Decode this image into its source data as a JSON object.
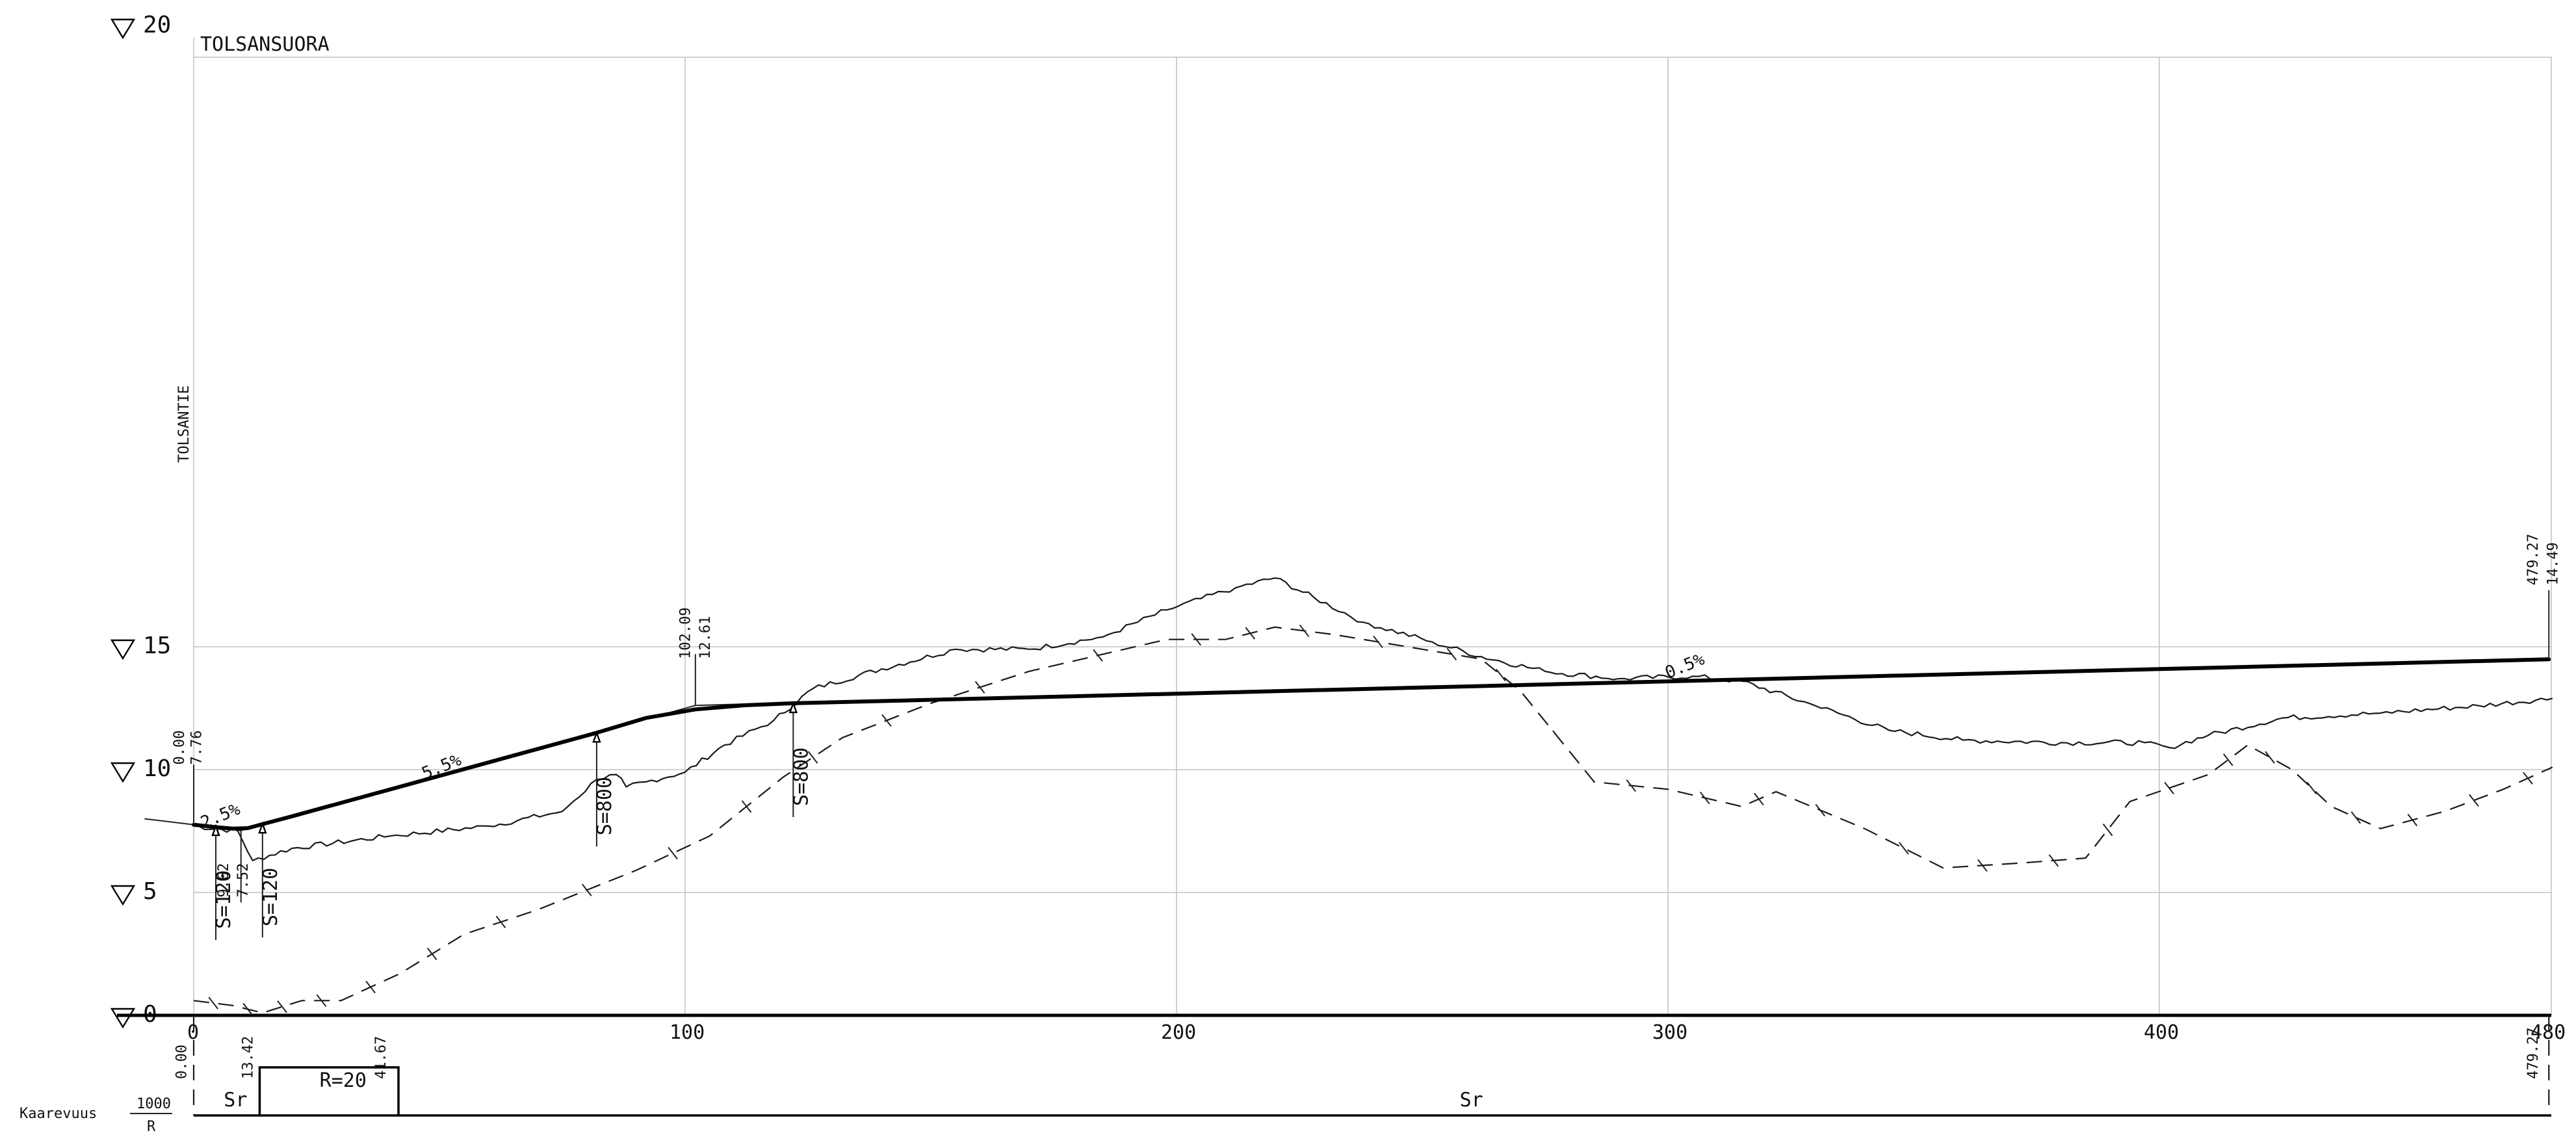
{
  "profile": {
    "road_name": "TOLSANSUORA",
    "crossing_road": "TOLSANTIE",
    "x_ticks": [
      0,
      100,
      200,
      300,
      400,
      480
    ],
    "elev_ticks": [
      0,
      5,
      10,
      15,
      20
    ],
    "grades": [
      {
        "text": "2.5%",
        "x": 2,
        "y": 7.6
      },
      {
        "text": "5.5%",
        "x": 47,
        "y": 9.6
      },
      {
        "text": "0.5%",
        "x": 300,
        "y": 13.7
      }
    ],
    "vertical_curves": [
      {
        "text": "S=120",
        "x": 4.5,
        "y": 7.7
      },
      {
        "text": "S=120",
        "x": 14,
        "y": 7.8
      },
      {
        "text": "S=800",
        "x": 82,
        "y": 11.5
      },
      {
        "text": "S=800",
        "x": 122,
        "y": 12.7
      }
    ],
    "station_labels": [
      {
        "text": "0.00",
        "x": -2,
        "y": 10.2
      },
      {
        "text": "7.76",
        "x": 1.5,
        "y": 10.2
      },
      {
        "text": "102.09",
        "x": 101,
        "y": 14.5
      },
      {
        "text": "12.61",
        "x": 105,
        "y": 14.5
      },
      {
        "text": "9.62",
        "x": 7,
        "y": 4.8
      },
      {
        "text": "7.52",
        "x": 11,
        "y": 4.8
      },
      {
        "text": "479.27",
        "x": 477,
        "y": 17.5
      },
      {
        "text": "14.49",
        "x": 481,
        "y": 17.5
      }
    ],
    "curvature": {
      "label": "Kaarevuus",
      "scale_value": "1000",
      "scale_unit": "R",
      "segments": [
        {
          "text": "Sr",
          "x": 8.5
        },
        {
          "text": "R=20",
          "x": 28
        },
        {
          "text": "Sr",
          "x": 260
        }
      ],
      "station_labels": [
        {
          "text": "0.00",
          "x": -1.5
        },
        {
          "text": "13.42",
          "x": 12
        },
        {
          "text": "41.67",
          "x": 39
        },
        {
          "text": "479.27",
          "x": 477
        }
      ]
    }
  }
}
